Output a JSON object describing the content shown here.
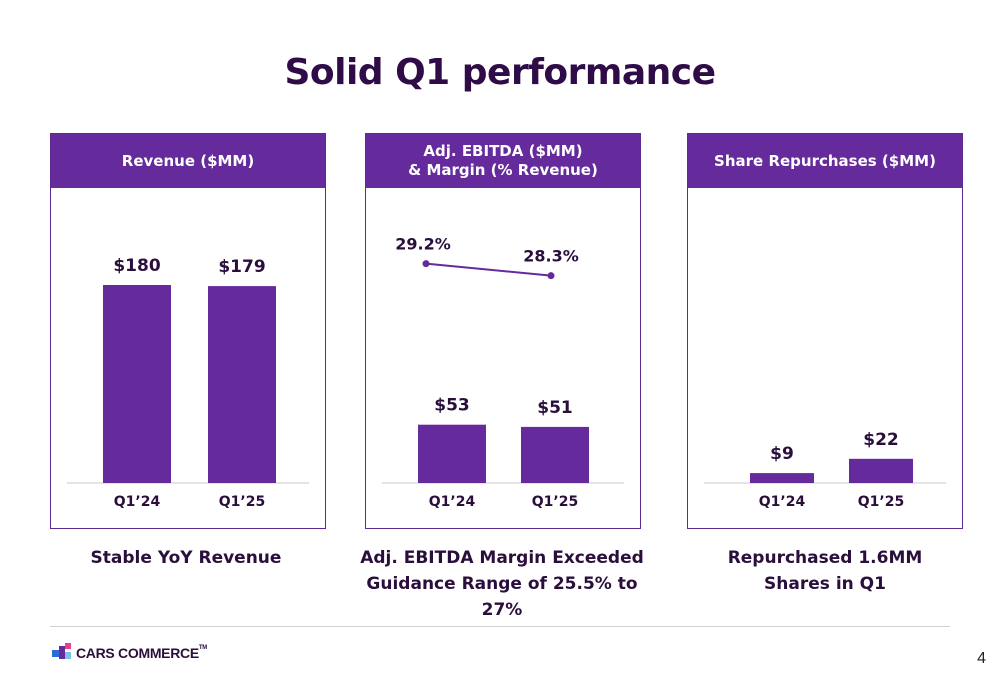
{
  "page": {
    "title": "Solid Q1 performance",
    "page_number": "4",
    "logo_text": "CARS COMMERCE",
    "logo_tm": "TM"
  },
  "colors": {
    "bar": "#652a9c",
    "header": "#652a9c",
    "text": "#2a0f3c",
    "line": "#652a9c"
  },
  "panels": [
    {
      "header_line1": "Revenue ($MM)",
      "header_line2": "",
      "caption_line1": "Stable YoY Revenue",
      "caption_line2": ""
    },
    {
      "header_line1": "Adj. EBITDA ($MM)",
      "header_line2": "& Margin (% Revenue)",
      "caption_line1": "Adj. EBITDA Margin Exceeded",
      "caption_line2": "Guidance Range of 25.5% to 27%"
    },
    {
      "header_line1": "Share Repurchases ($MM)",
      "header_line2": "",
      "caption_line1": "Repurchased 1.6MM",
      "caption_line2": "Shares in Q1"
    }
  ],
  "chart_data": [
    {
      "type": "bar",
      "title": "Revenue ($MM)",
      "categories": [
        "Q1’24",
        "Q1’25"
      ],
      "values": [
        180,
        179
      ],
      "value_labels": [
        "$180",
        "$179"
      ],
      "ylim": [
        0,
        200
      ]
    },
    {
      "type": "bar",
      "title": "Adj. EBITDA ($MM) & Margin (% Revenue)",
      "categories": [
        "Q1’24",
        "Q1’25"
      ],
      "values": [
        53,
        51
      ],
      "value_labels": [
        "$53",
        "$51"
      ],
      "ylim": [
        0,
        200
      ],
      "margin": {
        "values": [
          29.2,
          28.3
        ],
        "labels": [
          "29.2%",
          "28.3%"
        ]
      }
    },
    {
      "type": "bar",
      "title": "Share Repurchases ($MM)",
      "categories": [
        "Q1’24",
        "Q1’25"
      ],
      "values": [
        9,
        22
      ],
      "value_labels": [
        "$9",
        "$22"
      ],
      "ylim": [
        0,
        200
      ]
    }
  ]
}
